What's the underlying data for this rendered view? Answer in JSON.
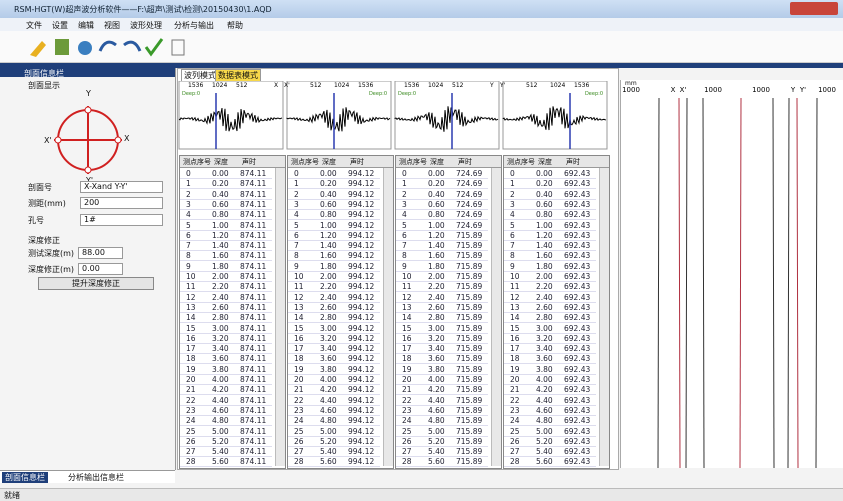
{
  "window": {
    "title": "RSM-HGT(W)超声波分析软件——F:\\超声\\测试\\检测\\20150430\\1.AQD"
  },
  "menu": [
    "文件",
    "设置",
    "编辑",
    "视图",
    "波形处理",
    "分析与输出",
    "帮助"
  ],
  "left_panel": {
    "header": "剖面信息栏",
    "section": "剖面显示",
    "diagram_labels": [
      "Y",
      "X'",
      "X",
      "Y'"
    ],
    "fields": [
      {
        "label": "剖面号",
        "value": "X-Xand Y-Y'"
      },
      {
        "label": "测距(mm)",
        "value": "200"
      },
      {
        "label": "孔号",
        "value": "1#"
      },
      {
        "label": "深度修正",
        "value": null
      },
      {
        "label": "测试深度(m)",
        "value": "88.00"
      },
      {
        "label": "深度修正(m)",
        "value": "0.00"
      }
    ],
    "button": "提升深度修正"
  },
  "bottom_tabs": [
    "剖面信息栏",
    "分析输出信息栏"
  ],
  "tabs": [
    "波列模式",
    "数据表模式"
  ],
  "wave_axis": [
    {
      "labels": [
        "1536",
        "1024",
        "512"
      ],
      "pair": [
        "X",
        "X'"
      ],
      "right": [
        "512",
        "1024",
        "1536"
      ]
    },
    {
      "labels": [
        "1536",
        "1024",
        "512"
      ],
      "pair": [
        "Y",
        "Y'"
      ],
      "right": [
        "512",
        "1024",
        "1536"
      ]
    }
  ],
  "delay": "Deep:0",
  "tables": [
    {
      "headers": [
        "测点序号",
        "深度",
        "声时"
      ],
      "rows": [
        [
          "0",
          "0.00",
          "874.11"
        ],
        [
          "1",
          "0.20",
          "874.11"
        ],
        [
          "2",
          "0.40",
          "874.11"
        ],
        [
          "3",
          "0.60",
          "874.11"
        ],
        [
          "4",
          "0.80",
          "874.11"
        ],
        [
          "5",
          "1.00",
          "874.11"
        ],
        [
          "6",
          "1.20",
          "874.11"
        ],
        [
          "7",
          "1.40",
          "874.11"
        ],
        [
          "8",
          "1.60",
          "874.11"
        ],
        [
          "9",
          "1.80",
          "874.11"
        ],
        [
          "10",
          "2.00",
          "874.11"
        ],
        [
          "11",
          "2.20",
          "874.11"
        ],
        [
          "12",
          "2.40",
          "874.11"
        ],
        [
          "13",
          "2.60",
          "874.11"
        ],
        [
          "14",
          "2.80",
          "874.11"
        ],
        [
          "15",
          "3.00",
          "874.11"
        ],
        [
          "16",
          "3.20",
          "874.11"
        ],
        [
          "17",
          "3.40",
          "874.11"
        ],
        [
          "18",
          "3.60",
          "874.11"
        ],
        [
          "19",
          "3.80",
          "874.11"
        ],
        [
          "20",
          "4.00",
          "874.11"
        ],
        [
          "21",
          "4.20",
          "874.11"
        ],
        [
          "22",
          "4.40",
          "874.11"
        ],
        [
          "23",
          "4.60",
          "874.11"
        ],
        [
          "24",
          "4.80",
          "874.11"
        ],
        [
          "25",
          "5.00",
          "874.11"
        ],
        [
          "26",
          "5.20",
          "874.11"
        ],
        [
          "27",
          "5.40",
          "874.11"
        ],
        [
          "28",
          "5.60",
          "874.11"
        ]
      ]
    },
    {
      "headers": [
        "测点序号",
        "深度",
        "声时"
      ],
      "rows": [
        [
          "0",
          "0.00",
          "994.12"
        ],
        [
          "1",
          "0.20",
          "994.12"
        ],
        [
          "2",
          "0.40",
          "994.12"
        ],
        [
          "3",
          "0.60",
          "994.12"
        ],
        [
          "4",
          "0.80",
          "994.12"
        ],
        [
          "5",
          "1.00",
          "994.12"
        ],
        [
          "6",
          "1.20",
          "994.12"
        ],
        [
          "7",
          "1.40",
          "994.12"
        ],
        [
          "8",
          "1.60",
          "994.12"
        ],
        [
          "9",
          "1.80",
          "994.12"
        ],
        [
          "10",
          "2.00",
          "994.12"
        ],
        [
          "11",
          "2.20",
          "994.12"
        ],
        [
          "12",
          "2.40",
          "994.12"
        ],
        [
          "13",
          "2.60",
          "994.12"
        ],
        [
          "14",
          "2.80",
          "994.12"
        ],
        [
          "15",
          "3.00",
          "994.12"
        ],
        [
          "16",
          "3.20",
          "994.12"
        ],
        [
          "17",
          "3.40",
          "994.12"
        ],
        [
          "18",
          "3.60",
          "994.12"
        ],
        [
          "19",
          "3.80",
          "994.12"
        ],
        [
          "20",
          "4.00",
          "994.12"
        ],
        [
          "21",
          "4.20",
          "994.12"
        ],
        [
          "22",
          "4.40",
          "994.12"
        ],
        [
          "23",
          "4.60",
          "994.12"
        ],
        [
          "24",
          "4.80",
          "994.12"
        ],
        [
          "25",
          "5.00",
          "994.12"
        ],
        [
          "26",
          "5.20",
          "994.12"
        ],
        [
          "27",
          "5.40",
          "994.12"
        ],
        [
          "28",
          "5.60",
          "994.12"
        ]
      ]
    },
    {
      "headers": [
        "测点序号",
        "深度",
        "声时"
      ],
      "rows": [
        [
          "0",
          "0.00",
          "724.69"
        ],
        [
          "1",
          "0.20",
          "724.69"
        ],
        [
          "2",
          "0.40",
          "724.69"
        ],
        [
          "3",
          "0.60",
          "724.69"
        ],
        [
          "4",
          "0.80",
          "724.69"
        ],
        [
          "5",
          "1.00",
          "724.69"
        ],
        [
          "6",
          "1.20",
          "715.89"
        ],
        [
          "7",
          "1.40",
          "715.89"
        ],
        [
          "8",
          "1.60",
          "715.89"
        ],
        [
          "9",
          "1.80",
          "715.89"
        ],
        [
          "10",
          "2.00",
          "715.89"
        ],
        [
          "11",
          "2.20",
          "715.89"
        ],
        [
          "12",
          "2.40",
          "715.89"
        ],
        [
          "13",
          "2.60",
          "715.89"
        ],
        [
          "14",
          "2.80",
          "715.89"
        ],
        [
          "15",
          "3.00",
          "715.89"
        ],
        [
          "16",
          "3.20",
          "715.89"
        ],
        [
          "17",
          "3.40",
          "715.89"
        ],
        [
          "18",
          "3.60",
          "715.89"
        ],
        [
          "19",
          "3.80",
          "715.89"
        ],
        [
          "20",
          "4.00",
          "715.89"
        ],
        [
          "21",
          "4.20",
          "715.89"
        ],
        [
          "22",
          "4.40",
          "715.89"
        ],
        [
          "23",
          "4.60",
          "715.89"
        ],
        [
          "24",
          "4.80",
          "715.89"
        ],
        [
          "25",
          "5.00",
          "715.89"
        ],
        [
          "26",
          "5.20",
          "715.89"
        ],
        [
          "27",
          "5.40",
          "715.89"
        ],
        [
          "28",
          "5.60",
          "715.89"
        ]
      ]
    },
    {
      "headers": [
        "测点序号",
        "深度",
        "声时"
      ],
      "rows": [
        [
          "0",
          "0.00",
          "692.43"
        ],
        [
          "1",
          "0.20",
          "692.43"
        ],
        [
          "2",
          "0.40",
          "692.43"
        ],
        [
          "3",
          "0.60",
          "692.43"
        ],
        [
          "4",
          "0.80",
          "692.43"
        ],
        [
          "5",
          "1.00",
          "692.43"
        ],
        [
          "6",
          "1.20",
          "692.43"
        ],
        [
          "7",
          "1.40",
          "692.43"
        ],
        [
          "8",
          "1.60",
          "692.43"
        ],
        [
          "9",
          "1.80",
          "692.43"
        ],
        [
          "10",
          "2.00",
          "692.43"
        ],
        [
          "11",
          "2.20",
          "692.43"
        ],
        [
          "12",
          "2.40",
          "692.43"
        ],
        [
          "13",
          "2.60",
          "692.43"
        ],
        [
          "14",
          "2.80",
          "692.43"
        ],
        [
          "15",
          "3.00",
          "692.43"
        ],
        [
          "16",
          "3.20",
          "692.43"
        ],
        [
          "17",
          "3.40",
          "692.43"
        ],
        [
          "18",
          "3.60",
          "692.43"
        ],
        [
          "19",
          "3.80",
          "692.43"
        ],
        [
          "20",
          "4.00",
          "692.43"
        ],
        [
          "21",
          "4.20",
          "692.43"
        ],
        [
          "22",
          "4.40",
          "692.43"
        ],
        [
          "23",
          "4.60",
          "692.43"
        ],
        [
          "24",
          "4.80",
          "692.43"
        ],
        [
          "25",
          "5.00",
          "692.43"
        ],
        [
          "26",
          "5.20",
          "692.43"
        ],
        [
          "27",
          "5.40",
          "692.43"
        ],
        [
          "28",
          "5.60",
          "692.43"
        ]
      ]
    }
  ],
  "right_panel": {
    "unit": "mm",
    "labels": [
      "1000",
      "X",
      "X'",
      "1000",
      "1000",
      "Y",
      "Y'",
      "1000"
    ]
  },
  "status": "就绪"
}
